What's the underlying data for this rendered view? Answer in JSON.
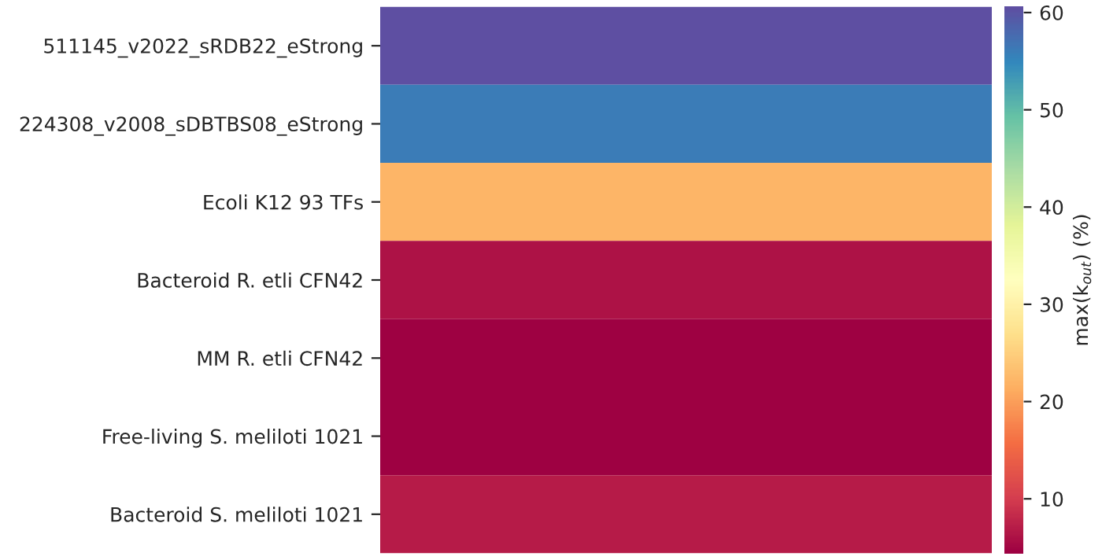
{
  "chart_data": {
    "type": "heatmap",
    "categories": [
      null
    ],
    "y_categories": [
      "511145_v2022_sRDB22_eStrong",
      "224308_v2008_sDBTBS08_eStrong",
      "Ecoli K12 93 TFs",
      "Bacteroid R. etli CFN42",
      "MM R. etli CFN42",
      "Free-living S. meliloti 1021",
      "Bacteroid S. meliloti 1021"
    ],
    "cells": [
      [
        60.6
      ],
      [
        56
      ],
      [
        22
      ],
      [
        6
      ],
      [
        4.4
      ],
      [
        4.4
      ],
      [
        7
      ]
    ],
    "clim": [
      4.4,
      60.6
    ],
    "cticks": [
      10,
      20,
      30,
      40,
      50,
      60
    ],
    "clabel": "max(k$_{out}$) (%)"
  }
}
